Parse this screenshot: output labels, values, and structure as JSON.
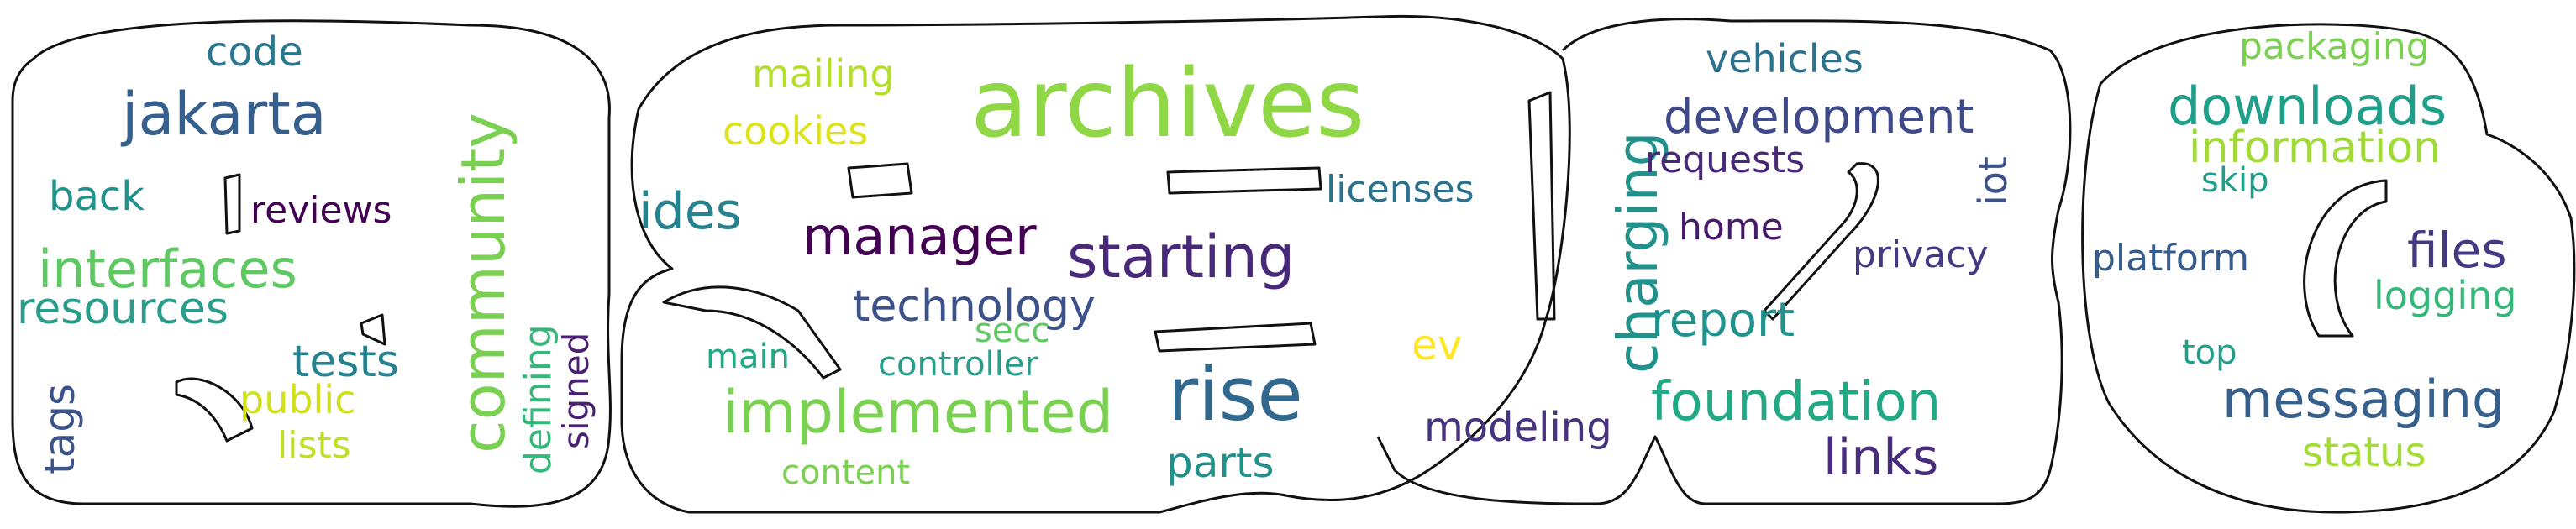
{
  "words": [
    {
      "text": "archives",
      "color": "#8fd744"
    },
    {
      "text": "rise",
      "color": "#31688e"
    },
    {
      "text": "community",
      "color": "#7ad151"
    },
    {
      "text": "jakarta",
      "color": "#355f8d"
    },
    {
      "text": "starting",
      "color": "#482878"
    },
    {
      "text": "implemented",
      "color": "#7ad151"
    },
    {
      "text": "charging",
      "color": "#21918c"
    },
    {
      "text": "foundation",
      "color": "#22a884"
    },
    {
      "text": "development",
      "color": "#3e4a89"
    },
    {
      "text": "downloads",
      "color": "#1f9e89"
    },
    {
      "text": "messaging",
      "color": "#355f8d"
    },
    {
      "text": "interfaces",
      "color": "#5ec962"
    },
    {
      "text": "manager",
      "color": "#440154"
    },
    {
      "text": "links",
      "color": "#472d7b"
    },
    {
      "text": "information",
      "color": "#a0da39"
    },
    {
      "text": "resources",
      "color": "#2a9d8a"
    },
    {
      "text": "technology",
      "color": "#3b528b"
    },
    {
      "text": "ides",
      "color": "#26828e"
    },
    {
      "text": "report",
      "color": "#21918c"
    },
    {
      "text": "files",
      "color": "#443983"
    },
    {
      "text": "tests",
      "color": "#26828e"
    },
    {
      "text": "code",
      "color": "#2a788e"
    },
    {
      "text": "back",
      "color": "#21918c"
    },
    {
      "text": "reviews",
      "color": "#440154"
    },
    {
      "text": "tags",
      "color": "#3b528b"
    },
    {
      "text": "defining",
      "color": "#35b779"
    },
    {
      "text": "signed",
      "color": "#482173"
    },
    {
      "text": "public",
      "color": "#d0e11c"
    },
    {
      "text": "lists",
      "color": "#bddf26"
    },
    {
      "text": "mailing",
      "color": "#b5de2b"
    },
    {
      "text": "cookies",
      "color": "#dde318"
    },
    {
      "text": "licenses",
      "color": "#2c728e"
    },
    {
      "text": "parts",
      "color": "#21918c"
    },
    {
      "text": "main",
      "color": "#22a884"
    },
    {
      "text": "secc",
      "color": "#5ec962"
    },
    {
      "text": "controller",
      "color": "#2a9d8a"
    },
    {
      "text": "content",
      "color": "#7ad151"
    },
    {
      "text": "ev",
      "color": "#fde725"
    },
    {
      "text": "modeling",
      "color": "#46337e"
    },
    {
      "text": "vehicles",
      "color": "#2c728e"
    },
    {
      "text": "requests",
      "color": "#482878"
    },
    {
      "text": "home",
      "color": "#481a6c"
    },
    {
      "text": "privacy",
      "color": "#443983"
    },
    {
      "text": "iot",
      "color": "#3b528b"
    },
    {
      "text": "packaging",
      "color": "#7ad151"
    },
    {
      "text": "skip",
      "color": "#1f9e89"
    },
    {
      "text": "platform",
      "color": "#365c8d"
    },
    {
      "text": "logging",
      "color": "#35b779"
    },
    {
      "text": "top",
      "color": "#1f9e89"
    },
    {
      "text": "status",
      "color": "#a5db36"
    }
  ]
}
